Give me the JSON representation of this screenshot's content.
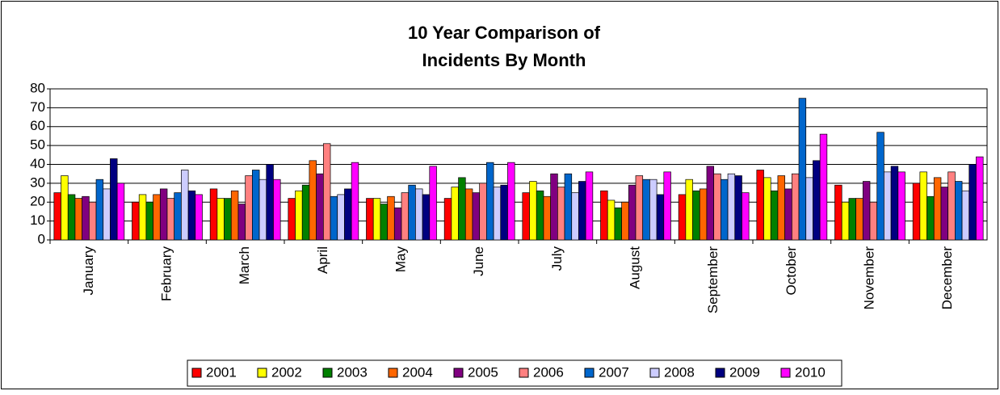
{
  "chart_data": {
    "type": "bar",
    "title": [
      "10 Year Comparison of",
      "Incidents By Month"
    ],
    "categories": [
      "January",
      "February",
      "March",
      "April",
      "May",
      "June",
      "July",
      "August",
      "September",
      "October",
      "November",
      "December"
    ],
    "series": [
      {
        "name": "2001",
        "color": "#ff0000",
        "values": [
          25,
          20,
          27,
          22,
          22,
          22,
          25,
          26,
          24,
          37,
          29,
          30
        ]
      },
      {
        "name": "2002",
        "color": "#ffff00",
        "values": [
          34,
          24,
          22,
          26,
          22,
          28,
          31,
          21,
          32,
          33,
          20,
          36
        ]
      },
      {
        "name": "2003",
        "color": "#008000",
        "values": [
          24,
          20,
          22,
          29,
          19,
          33,
          26,
          17,
          26,
          26,
          22,
          23
        ]
      },
      {
        "name": "2004",
        "color": "#ff6600",
        "values": [
          22,
          24,
          26,
          42,
          23,
          27,
          23,
          20,
          27,
          34,
          22,
          33
        ]
      },
      {
        "name": "2005",
        "color": "#800080",
        "values": [
          23,
          27,
          19,
          35,
          17,
          25,
          35,
          29,
          39,
          27,
          31,
          28
        ]
      },
      {
        "name": "2006",
        "color": "#ff8080",
        "values": [
          20,
          22,
          34,
          51,
          25,
          30,
          28,
          34,
          35,
          35,
          20,
          36
        ]
      },
      {
        "name": "2007",
        "color": "#0066cc",
        "values": [
          32,
          25,
          37,
          23,
          29,
          41,
          35,
          32,
          32,
          75,
          57,
          31
        ]
      },
      {
        "name": "2008",
        "color": "#ccccff",
        "values": [
          27,
          37,
          32,
          24,
          27,
          28,
          25,
          32,
          35,
          33,
          36,
          26
        ]
      },
      {
        "name": "2009",
        "color": "#000080",
        "values": [
          43,
          26,
          40,
          27,
          24,
          29,
          31,
          24,
          34,
          42,
          39,
          40
        ]
      },
      {
        "name": "2010",
        "color": "#ff00ff",
        "values": [
          30,
          24,
          32,
          41,
          39,
          41,
          36,
          36,
          25,
          56,
          36,
          44
        ]
      }
    ],
    "ylim": [
      0,
      80
    ],
    "yticks": [
      0,
      10,
      20,
      30,
      40,
      50,
      60,
      70,
      80
    ],
    "grid": true,
    "legend": "bottom"
  }
}
